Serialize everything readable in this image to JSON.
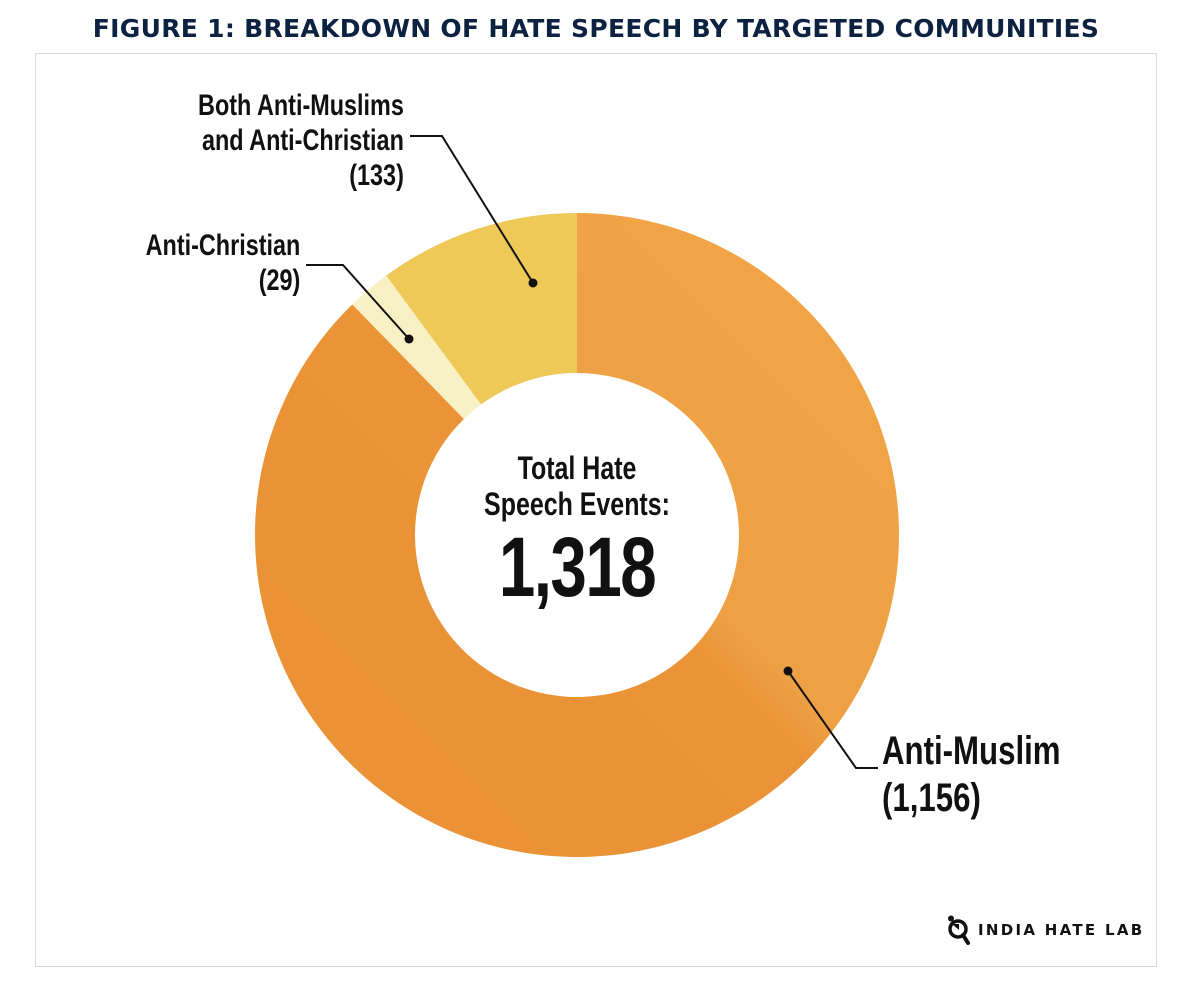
{
  "title": "FIGURE 1: BREAKDOWN OF HATE SPEECH BY TARGETED COMMUNITIES",
  "chart_data": {
    "type": "pie",
    "variant": "donut",
    "title": "FIGURE 1: BREAKDOWN OF HATE SPEECH BY TARGETED COMMUNITIES",
    "center_label": "Total Hate Speech Events:",
    "center_label_lines": [
      "Total Hate",
      "Speech Events:"
    ],
    "total": "1,318",
    "slices": [
      {
        "label": "Anti-Muslim",
        "value": 1156,
        "value_label": "(1,156)",
        "color": "#EA9437"
      },
      {
        "label": "Anti-Christian",
        "value": 29,
        "value_label": "(29)",
        "color": "#F8F1C6"
      },
      {
        "label": "Both Anti-Muslims and Anti-Christian",
        "label_lines": [
          "Both Anti-Muslims",
          "and Anti-Christian"
        ],
        "value": 133,
        "value_label": "(133)",
        "color": "#EFC957"
      }
    ],
    "start_angle": "12 o'clock",
    "direction": "clockwise"
  },
  "colors": {
    "title": "#0d2240",
    "border": "#d8d8d8"
  },
  "logo": {
    "text": "INDIA HATE LAB",
    "icon": "magnifier-person-icon"
  }
}
